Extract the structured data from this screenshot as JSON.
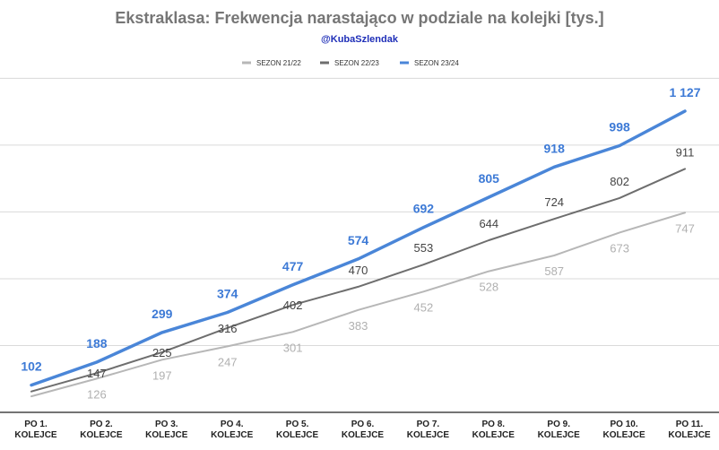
{
  "chart_data": {
    "type": "line",
    "title": "Ekstraklasa: Frekwencja narastająco w podziale na kolejki [tys.]",
    "subtitle": "@KubaSzlendak",
    "categories": [
      "PO 1.\nKOLEJCE",
      "PO 2.\nKOLEJCE",
      "PO 3.\nKOLEJCE",
      "PO 4.\nKOLEJCE",
      "PO 5.\nKOLEJCE",
      "PO 6.\nKOLEJCE",
      "PO 7.\nKOLEJCE",
      "PO 8.\nKOLEJCE",
      "PO 9.\nKOLEJCE",
      "PO 10.\nKOLEJCE",
      "PO 11.\nKOLEJCE"
    ],
    "series": [
      {
        "name": "SEZON 21/22",
        "color": "#b7b7b7",
        "values": [
          60,
          126,
          197,
          247,
          301,
          383,
          452,
          528,
          587,
          673,
          747
        ],
        "labels": [
          "",
          "126",
          "197",
          "247",
          "301",
          "383",
          "452",
          "528",
          "587",
          "673",
          "747"
        ]
      },
      {
        "name": "SEZON 22/23",
        "color": "#6e6e6e",
        "values": [
          78,
          147,
          225,
          316,
          402,
          470,
          553,
          644,
          724,
          802,
          911
        ],
        "labels": [
          "",
          "147",
          "225",
          "316",
          "402",
          "470",
          "553",
          "644",
          "724",
          "802",
          "911"
        ]
      },
      {
        "name": "SEZON 23/24",
        "color": "#4a86d8",
        "values": [
          102,
          188,
          299,
          374,
          477,
          574,
          692,
          805,
          918,
          998,
          1127
        ],
        "labels": [
          "102",
          "188",
          "299",
          "374",
          "477",
          "574",
          "692",
          "805",
          "918",
          "998",
          "1 127"
        ]
      }
    ],
    "ylim": [
      0,
      1200
    ],
    "grid": true,
    "legend_position": "top-center"
  }
}
